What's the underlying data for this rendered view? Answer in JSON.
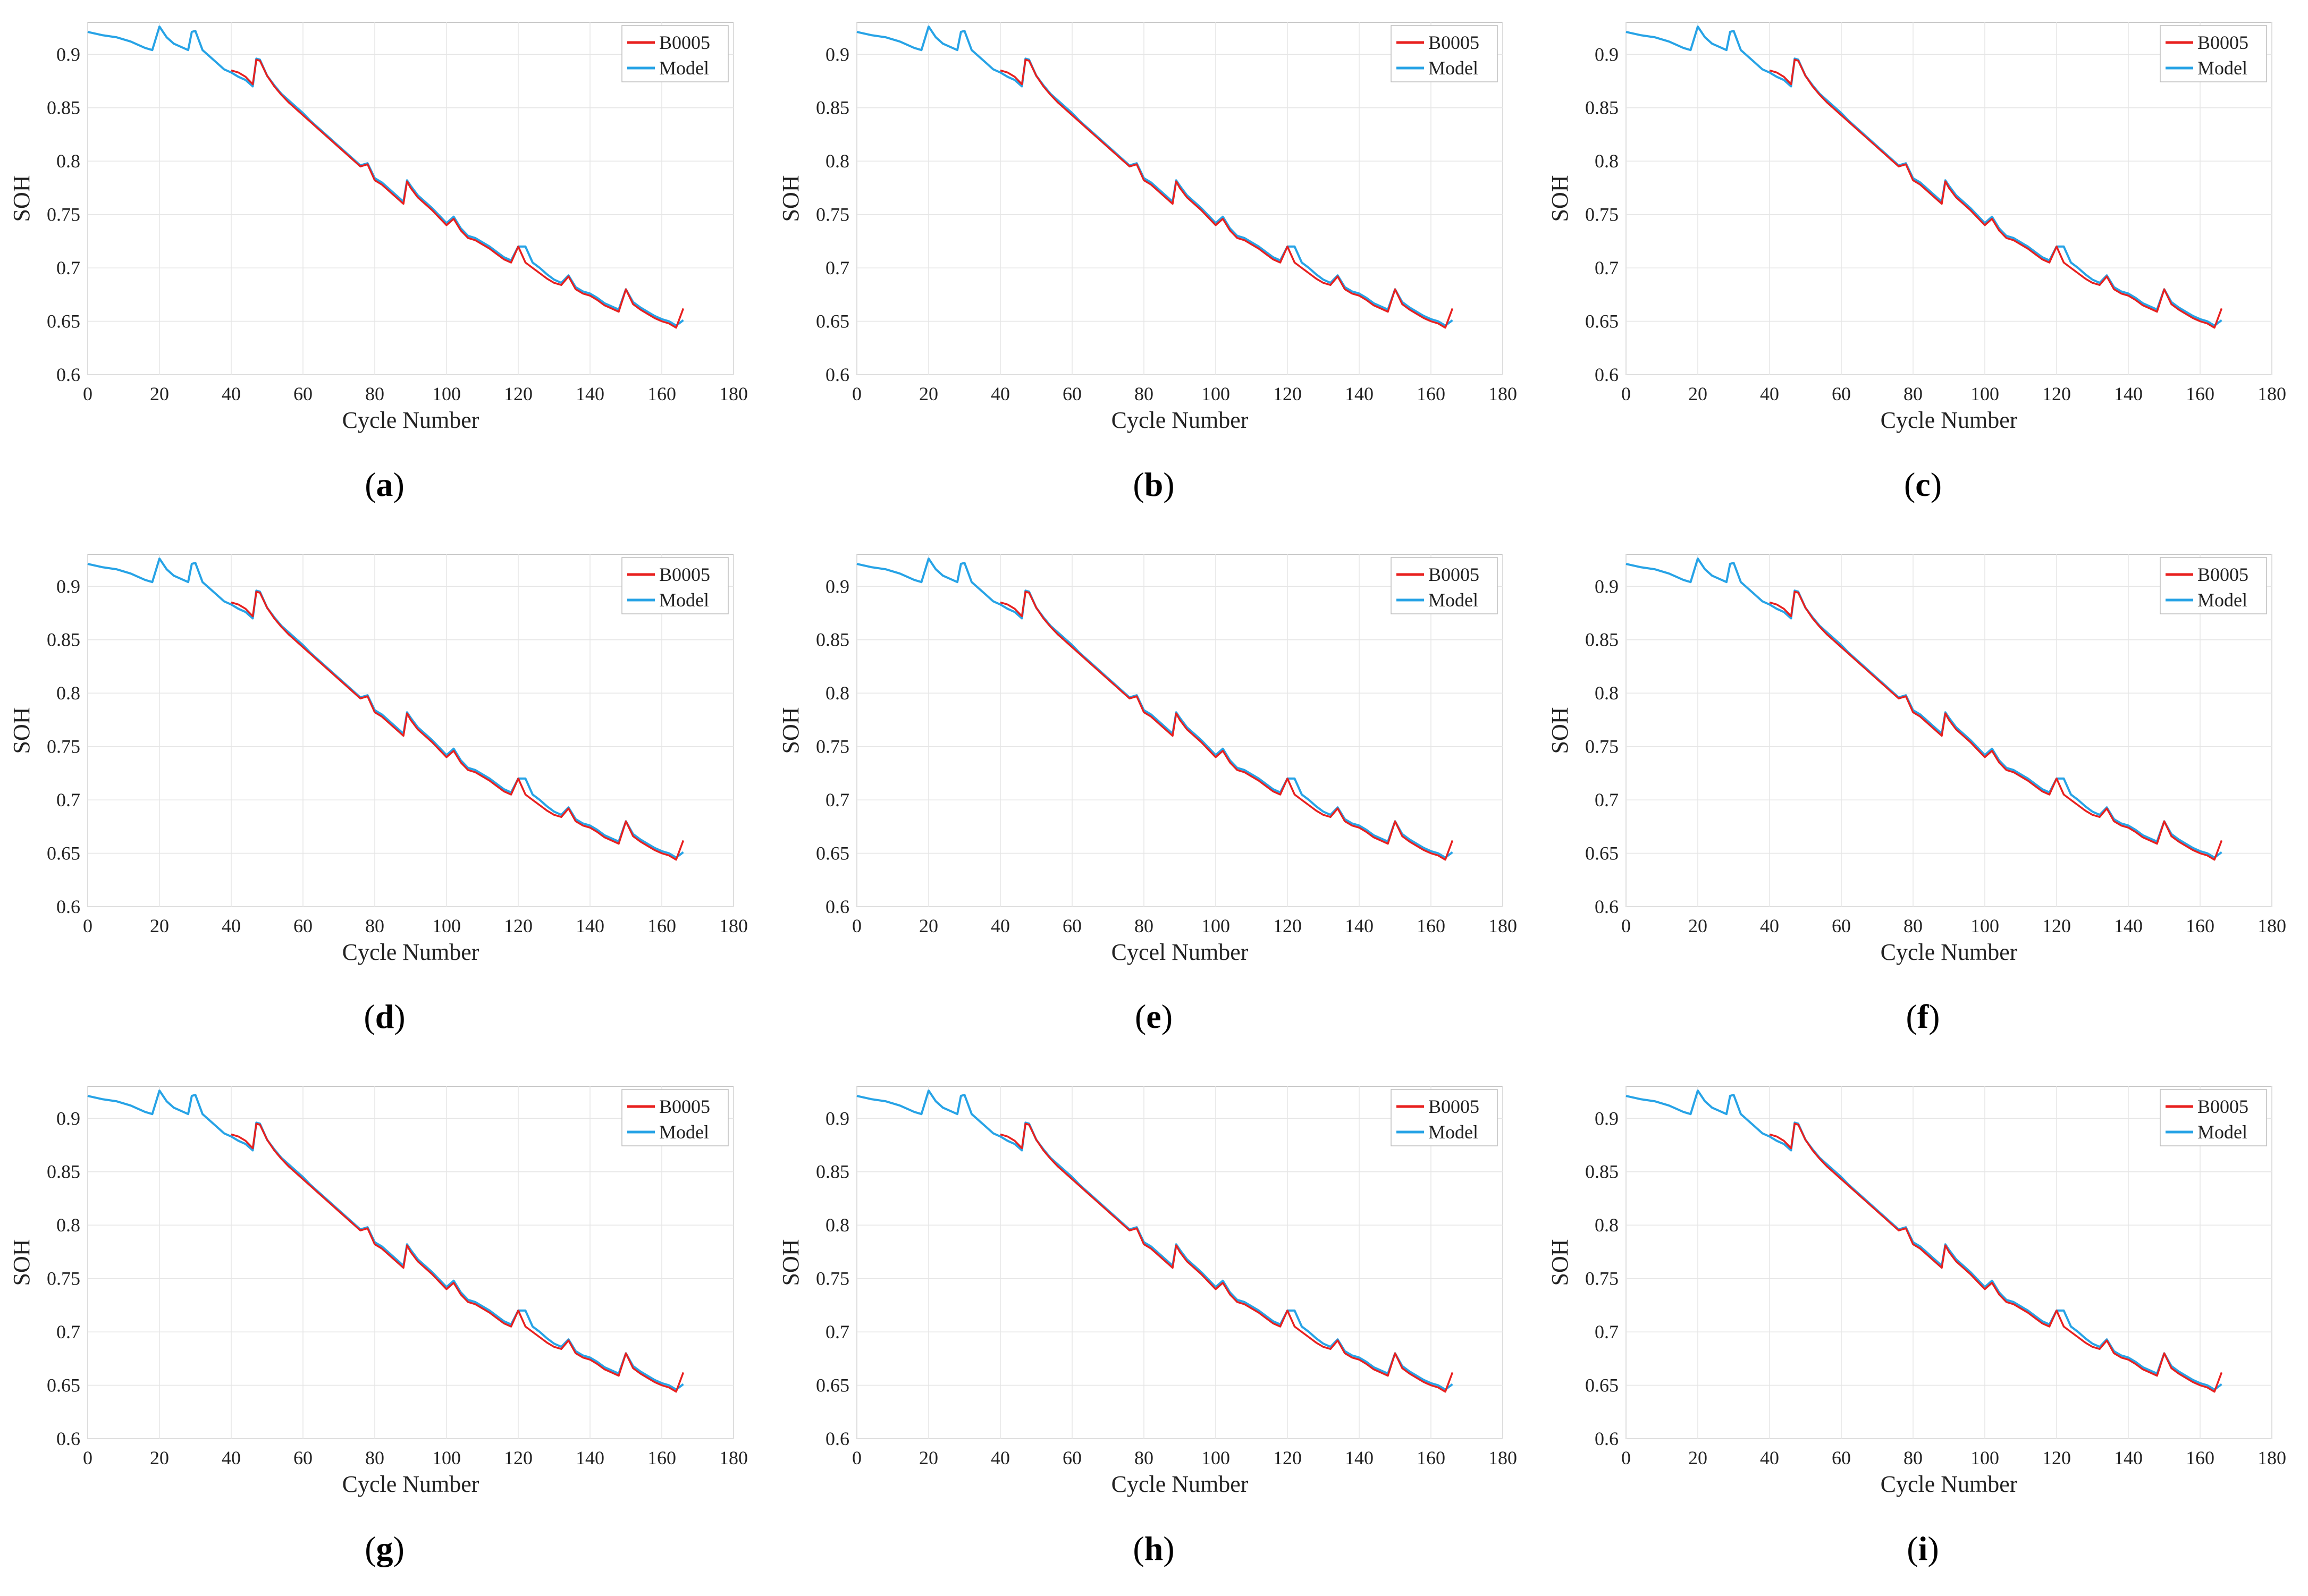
{
  "figure": {
    "panels": [
      {
        "label": "a",
        "xlabel": "Cycle Number"
      },
      {
        "label": "b",
        "xlabel": "Cycle Number"
      },
      {
        "label": "c",
        "xlabel": "Cycle Number"
      },
      {
        "label": "d",
        "xlabel": "Cycle Number"
      },
      {
        "label": "e",
        "xlabel": "Cycel Number"
      },
      {
        "label": "f",
        "xlabel": "Cycle Number"
      },
      {
        "label": "g",
        "xlabel": "Cycle Number"
      },
      {
        "label": "h",
        "xlabel": "Cycle Number"
      },
      {
        "label": "i",
        "xlabel": "Cycle Number"
      }
    ]
  },
  "colors": {
    "measured": "#e8201f",
    "model": "#27a3e6",
    "grid": "#e6e6e6",
    "axis": "#c8c8c8"
  },
  "chart_data": {
    "type": "line",
    "ylabel": "SOH",
    "xlim": [
      0,
      180
    ],
    "ylim": [
      0.6,
      0.93
    ],
    "xticks": [
      0,
      20,
      40,
      60,
      80,
      100,
      120,
      140,
      160,
      180
    ],
    "yticks": [
      0.6,
      0.65,
      0.7,
      0.75,
      0.8,
      0.85,
      0.9
    ],
    "ytick_labels": [
      "0.6",
      "0.65",
      "0.7",
      "0.75",
      "0.8",
      "0.85",
      "0.9"
    ],
    "legend": {
      "position": "top-right",
      "entries": [
        "B0005",
        "Model"
      ]
    },
    "series": [
      {
        "name": "B0005",
        "x": [
          40,
          42,
          44,
          46,
          47,
          48,
          50,
          52,
          54,
          56,
          58,
          60,
          62,
          64,
          66,
          68,
          70,
          72,
          74,
          76,
          78,
          80,
          82,
          84,
          86,
          88,
          89,
          90,
          92,
          94,
          96,
          98,
          100,
          102,
          104,
          106,
          108,
          110,
          112,
          114,
          116,
          118,
          120,
          122,
          124,
          126,
          128,
          130,
          132,
          134,
          136,
          138,
          140,
          142,
          144,
          146,
          148,
          150,
          152,
          154,
          156,
          158,
          160,
          162,
          164,
          166
        ],
        "y": [
          0.885,
          0.883,
          0.879,
          0.872,
          0.895,
          0.894,
          0.88,
          0.87,
          0.862,
          0.855,
          0.849,
          0.843,
          0.837,
          0.831,
          0.825,
          0.819,
          0.813,
          0.807,
          0.801,
          0.795,
          0.797,
          0.782,
          0.778,
          0.772,
          0.766,
          0.76,
          0.781,
          0.775,
          0.766,
          0.76,
          0.754,
          0.747,
          0.74,
          0.746,
          0.735,
          0.728,
          0.726,
          0.722,
          0.718,
          0.713,
          0.708,
          0.705,
          0.72,
          0.705,
          0.7,
          0.695,
          0.69,
          0.686,
          0.684,
          0.692,
          0.68,
          0.676,
          0.674,
          0.67,
          0.665,
          0.662,
          0.659,
          0.68,
          0.666,
          0.661,
          0.657,
          0.653,
          0.65,
          0.648,
          0.644,
          0.662
        ]
      },
      {
        "name": "Model",
        "x": [
          0,
          4,
          8,
          12,
          16,
          18,
          20,
          22,
          24,
          26,
          28,
          29,
          30,
          32,
          34,
          36,
          38,
          40,
          42,
          44,
          46,
          47,
          48,
          50,
          52,
          54,
          56,
          58,
          60,
          62,
          64,
          66,
          68,
          70,
          72,
          74,
          76,
          78,
          80,
          82,
          84,
          86,
          88,
          89,
          90,
          92,
          94,
          96,
          98,
          100,
          102,
          104,
          106,
          108,
          110,
          112,
          114,
          116,
          118,
          120,
          122,
          124,
          126,
          128,
          130,
          132,
          134,
          136,
          138,
          140,
          142,
          144,
          146,
          148,
          150,
          152,
          154,
          156,
          158,
          160,
          162,
          164,
          166
        ],
        "y": [
          0.921,
          0.918,
          0.916,
          0.912,
          0.906,
          0.904,
          0.926,
          0.916,
          0.91,
          0.907,
          0.904,
          0.921,
          0.922,
          0.904,
          0.898,
          0.892,
          0.886,
          0.883,
          0.879,
          0.876,
          0.87,
          0.896,
          0.895,
          0.88,
          0.871,
          0.863,
          0.857,
          0.851,
          0.845,
          0.838,
          0.832,
          0.826,
          0.82,
          0.814,
          0.808,
          0.802,
          0.796,
          0.798,
          0.784,
          0.78,
          0.774,
          0.768,
          0.762,
          0.782,
          0.777,
          0.768,
          0.762,
          0.756,
          0.749,
          0.742,
          0.748,
          0.737,
          0.73,
          0.728,
          0.724,
          0.72,
          0.715,
          0.71,
          0.707,
          0.72,
          0.72,
          0.705,
          0.7,
          0.694,
          0.689,
          0.686,
          0.693,
          0.682,
          0.678,
          0.676,
          0.672,
          0.667,
          0.664,
          0.661,
          0.68,
          0.668,
          0.663,
          0.659,
          0.655,
          0.652,
          0.65,
          0.646,
          0.651
        ]
      }
    ]
  }
}
